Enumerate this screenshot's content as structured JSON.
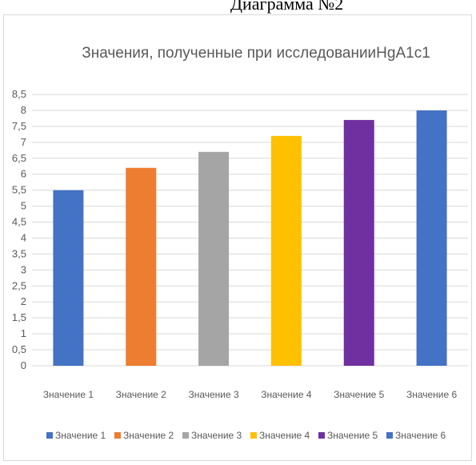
{
  "header": {
    "caption": "Диаграмма №2"
  },
  "chart_data": {
    "type": "bar",
    "title": "Значения, полученные при исследованииHgA1c1",
    "xlabel": "",
    "ylabel": "",
    "ylim": [
      0,
      8.5
    ],
    "y_ticks": [
      "0",
      "0,5",
      "1",
      "1,5",
      "2",
      "2,5",
      "3",
      "3,5",
      "4",
      "4,5",
      "5",
      "5,5",
      "6",
      "6,5",
      "7",
      "7,5",
      "8",
      "8,5"
    ],
    "categories": [
      "Значение 1",
      "Значение 2",
      "Значение 3",
      "Значение 4",
      "Значение 5",
      "Значение 6"
    ],
    "values": [
      5.5,
      6.2,
      6.7,
      7.2,
      7.7,
      8.0
    ],
    "colors": [
      "#4472c4",
      "#ed7d31",
      "#a5a5a5",
      "#ffc000",
      "#7030a0",
      "#4472c4"
    ],
    "gridlines": true,
    "legend_position": "bottom",
    "legend": [
      "Значение 1",
      "Значение 2",
      "Значение 3",
      "Значение 4",
      "Значение 5",
      "Значение 6"
    ]
  }
}
